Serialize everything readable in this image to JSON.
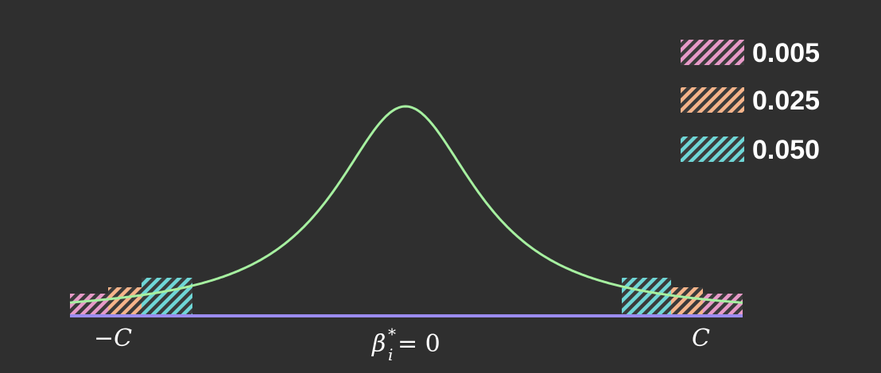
{
  "colors": {
    "background": "#2f2f2f",
    "curve": "#a6f0a0",
    "baseline": "#9b8cf0",
    "level_005": "#e79ac8",
    "level_025": "#f5b48a",
    "level_050": "#6fd6d6",
    "label": "#ffffff"
  },
  "legend": [
    {
      "key": "level_005",
      "label": "0.005"
    },
    {
      "key": "level_025",
      "label": "0.025"
    },
    {
      "key": "level_050",
      "label": "0.050"
    }
  ],
  "labels": {
    "left_critical": "−C",
    "center_prefix": "β",
    "center_sub": "i",
    "center_sup": "*",
    "center_suffix": " = 0",
    "right_critical": "C"
  }
}
